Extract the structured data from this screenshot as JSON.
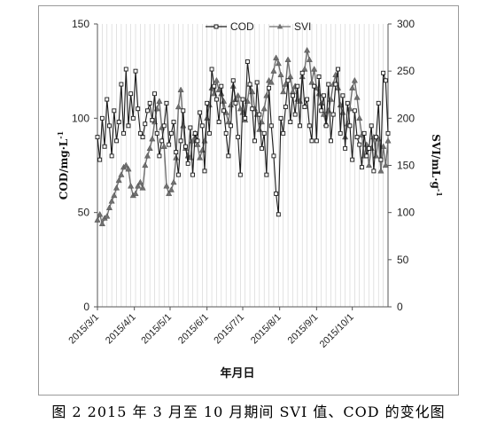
{
  "caption": "图 2  2015 年 3 月至 10 月期间 SVI 值、COD 的变化图",
  "chart_data": {
    "type": "line",
    "xlabel": "年月日",
    "ylabel_left": "COD/mg·L",
    "ylabel_left_sup": "-1",
    "ylabel_right": "SVI/mL·g",
    "ylabel_right_sup": "-1",
    "ylim_left": [
      0,
      150
    ],
    "ylim_right": [
      0,
      300
    ],
    "yticks_left": [
      "0",
      "50",
      "100",
      "150"
    ],
    "yticks_right": [
      "0",
      "50",
      "100",
      "150",
      "200",
      "250",
      "300"
    ],
    "x_range": [
      "2015-03-01",
      "2015-10-31"
    ],
    "x_tick_labels": [
      "2015/3/1",
      "2015/4/1",
      "2015/5/1",
      "2015/6/1",
      "2015/7/1",
      "2015/8/1",
      "2015/9/1",
      "2015/10/1"
    ],
    "x_tick_dates": [
      "2015-03-01",
      "2015-04-01",
      "2015-05-01",
      "2015-06-01",
      "2015-07-01",
      "2015-08-01",
      "2015-09-01",
      "2015-10-01"
    ],
    "grid": "vertical",
    "legend": "top",
    "series": [
      {
        "name": "COD",
        "axis": "left",
        "marker": "square",
        "color": "#1a1a1a",
        "x": [
          "2015-03-01",
          "2015-03-03",
          "2015-03-05",
          "2015-03-07",
          "2015-03-09",
          "2015-03-11",
          "2015-03-13",
          "2015-03-15",
          "2015-03-17",
          "2015-03-19",
          "2015-03-21",
          "2015-03-23",
          "2015-03-25",
          "2015-03-27",
          "2015-03-29",
          "2015-03-31",
          "2015-04-02",
          "2015-04-04",
          "2015-04-06",
          "2015-04-08",
          "2015-04-10",
          "2015-04-12",
          "2015-04-14",
          "2015-04-16",
          "2015-04-18",
          "2015-04-20",
          "2015-04-22",
          "2015-04-24",
          "2015-04-26",
          "2015-04-28",
          "2015-04-30",
          "2015-05-02",
          "2015-05-04",
          "2015-05-06",
          "2015-05-08",
          "2015-05-10",
          "2015-05-12",
          "2015-05-14",
          "2015-05-16",
          "2015-05-18",
          "2015-05-20",
          "2015-05-22",
          "2015-05-24",
          "2015-05-26",
          "2015-05-28",
          "2015-05-30",
          "2015-06-01",
          "2015-06-03",
          "2015-06-05",
          "2015-06-07",
          "2015-06-09",
          "2015-06-11",
          "2015-06-13",
          "2015-06-15",
          "2015-06-17",
          "2015-06-19",
          "2015-06-21",
          "2015-06-23",
          "2015-06-25",
          "2015-06-27",
          "2015-06-29",
          "2015-07-01",
          "2015-07-03",
          "2015-07-05",
          "2015-07-07",
          "2015-07-09",
          "2015-07-11",
          "2015-07-13",
          "2015-07-15",
          "2015-07-17",
          "2015-07-19",
          "2015-07-21",
          "2015-07-23",
          "2015-07-25",
          "2015-07-27",
          "2015-07-29",
          "2015-07-31",
          "2015-08-02",
          "2015-08-04",
          "2015-08-06",
          "2015-08-08",
          "2015-08-10",
          "2015-08-12",
          "2015-08-14",
          "2015-08-16",
          "2015-08-18",
          "2015-08-20",
          "2015-08-22",
          "2015-08-24",
          "2015-08-26",
          "2015-08-28",
          "2015-08-30",
          "2015-09-01",
          "2015-09-03",
          "2015-09-05",
          "2015-09-07",
          "2015-09-09",
          "2015-09-11",
          "2015-09-13",
          "2015-09-15",
          "2015-09-17",
          "2015-09-19",
          "2015-09-21",
          "2015-09-23",
          "2015-09-25",
          "2015-09-27",
          "2015-09-29",
          "2015-10-01",
          "2015-10-03",
          "2015-10-05",
          "2015-10-07",
          "2015-10-09",
          "2015-10-11",
          "2015-10-13",
          "2015-10-15",
          "2015-10-17",
          "2015-10-19",
          "2015-10-21",
          "2015-10-23",
          "2015-10-25",
          "2015-10-27",
          "2015-10-29",
          "2015-10-31"
        ],
        "y": [
          90,
          78,
          100,
          85,
          110,
          96,
          80,
          104,
          88,
          98,
          118,
          92,
          126,
          96,
          113,
          100,
          125,
          105,
          92,
          90,
          97,
          104,
          108,
          99,
          113,
          92,
          80,
          88,
          96,
          108,
          86,
          92,
          98,
          82,
          70,
          88,
          104,
          85,
          76,
          95,
          70,
          92,
          88,
          103,
          96,
          72,
          108,
          92,
          126,
          117,
          110,
          98,
          117,
          104,
          92,
          80,
          96,
          120,
          108,
          90,
          70,
          110,
          100,
          130,
          118,
          105,
          88,
          119,
          102,
          84,
          92,
          70,
          116,
          96,
          80,
          60,
          49,
          100,
          92,
          106,
          120,
          98,
          112,
          102,
          117,
          96,
          124,
          106,
          110,
          96,
          88,
          117,
          88,
          122,
          104,
          112,
          96,
          118,
          88,
          102,
          118,
          126,
          92,
          112,
          84,
          108,
          96,
          78,
          104,
          90,
          86,
          74,
          92,
          80,
          84,
          96,
          72,
          90,
          108,
          78,
          124,
          120,
          92
        ]
      },
      {
        "name": "SVI",
        "axis": "right",
        "marker": "triangle",
        "color": "#707070",
        "x": [
          "2015-03-01",
          "2015-03-03",
          "2015-03-05",
          "2015-03-07",
          "2015-03-09",
          "2015-03-11",
          "2015-03-13",
          "2015-03-15",
          "2015-03-17",
          "2015-03-19",
          "2015-03-21",
          "2015-03-23",
          "2015-03-25",
          "2015-03-27",
          "2015-03-29",
          "2015-03-31",
          "2015-04-02",
          "2015-04-04",
          "2015-04-06",
          "2015-04-08",
          "2015-04-10",
          "2015-04-12",
          "2015-04-14",
          "2015-04-16",
          "2015-04-18",
          "2015-04-20",
          "2015-04-22",
          "2015-04-24",
          "2015-04-26",
          "2015-04-28",
          "2015-04-30",
          "2015-05-02",
          "2015-05-04",
          "2015-05-06",
          "2015-05-08",
          "2015-05-10",
          "2015-05-12",
          "2015-05-14",
          "2015-05-16",
          "2015-05-18",
          "2015-05-20",
          "2015-05-22",
          "2015-05-24",
          "2015-05-26",
          "2015-05-28",
          "2015-05-30",
          "2015-06-01",
          "2015-06-03",
          "2015-06-05",
          "2015-06-07",
          "2015-06-09",
          "2015-06-11",
          "2015-06-13",
          "2015-06-15",
          "2015-06-17",
          "2015-06-19",
          "2015-06-21",
          "2015-06-23",
          "2015-06-25",
          "2015-06-27",
          "2015-06-29",
          "2015-07-01",
          "2015-07-03",
          "2015-07-05",
          "2015-07-07",
          "2015-07-09",
          "2015-07-11",
          "2015-07-13",
          "2015-07-15",
          "2015-07-17",
          "2015-07-19",
          "2015-07-21",
          "2015-07-23",
          "2015-07-25",
          "2015-07-27",
          "2015-07-29",
          "2015-07-31",
          "2015-08-02",
          "2015-08-04",
          "2015-08-06",
          "2015-08-08",
          "2015-08-10",
          "2015-08-12",
          "2015-08-14",
          "2015-08-16",
          "2015-08-18",
          "2015-08-20",
          "2015-08-22",
          "2015-08-24",
          "2015-08-26",
          "2015-08-28",
          "2015-08-30",
          "2015-09-01",
          "2015-09-03",
          "2015-09-05",
          "2015-09-07",
          "2015-09-09",
          "2015-09-11",
          "2015-09-13",
          "2015-09-15",
          "2015-09-17",
          "2015-09-19",
          "2015-09-21",
          "2015-09-23",
          "2015-09-25",
          "2015-09-27",
          "2015-09-29",
          "2015-10-01",
          "2015-10-03",
          "2015-10-05",
          "2015-10-07",
          "2015-10-09",
          "2015-10-11",
          "2015-10-13",
          "2015-10-15",
          "2015-10-17",
          "2015-10-19",
          "2015-10-21",
          "2015-10-23",
          "2015-10-25",
          "2015-10-27",
          "2015-10-29",
          "2015-10-31"
        ],
        "y": [
          92,
          98,
          88,
          94,
          96,
          105,
          112,
          118,
          126,
          134,
          140,
          148,
          150,
          146,
          128,
          118,
          120,
          128,
          132,
          126,
          150,
          160,
          168,
          178,
          196,
          210,
          218,
          190,
          170,
          128,
          120,
          124,
          132,
          158,
          212,
          230,
          192,
          168,
          160,
          158,
          176,
          184,
          172,
          158,
          166,
          176,
          200,
          214,
          232,
          226,
          240,
          230,
          226,
          218,
          206,
          196,
          214,
          234,
          220,
          224,
          210,
          206,
          198,
          218,
          236,
          228,
          210,
          204,
          188,
          196,
          210,
          224,
          240,
          238,
          250,
          264,
          258,
          246,
          228,
          236,
          262,
          244,
          228,
          234,
          220,
          218,
          244,
          252,
          272,
          262,
          238,
          252,
          232,
          226,
          216,
          204,
          194,
          208,
          220,
          236,
          246,
          232,
          214,
          206,
          180,
          194,
          210,
          232,
          240,
          222,
          200,
          182,
          160,
          172,
          150,
          168,
          180,
          160,
          178,
          144,
          170,
          150,
          176
        ]
      }
    ]
  }
}
